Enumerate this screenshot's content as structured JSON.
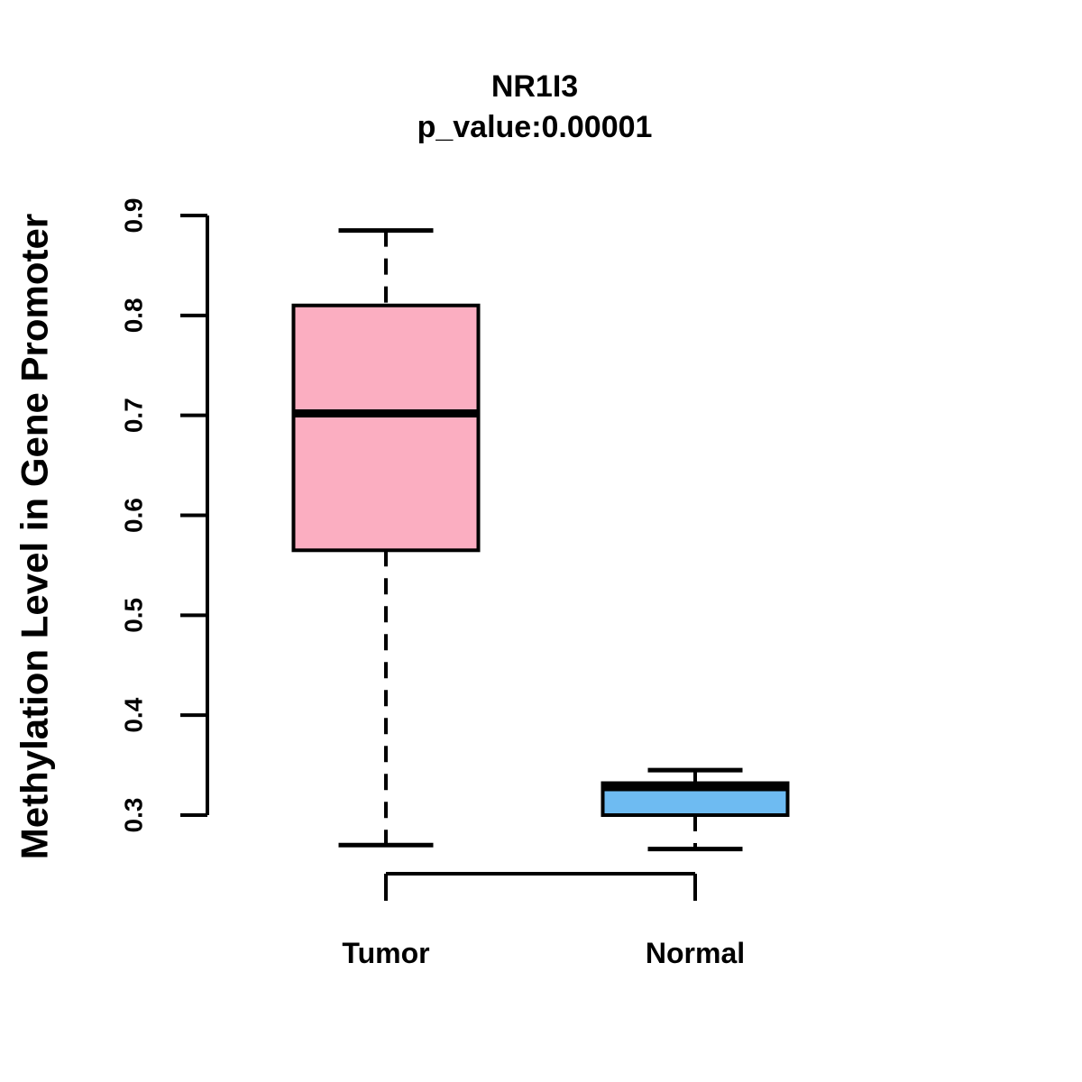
{
  "title": {
    "gene": "NR1I3",
    "p_value_line": "p_value:0.00001"
  },
  "colors": {
    "tumor_fill": "#FBAEC1",
    "normal_fill": "#6EBBF2",
    "line": "#000000",
    "background": "#FFFFFF"
  },
  "chart_data": {
    "type": "boxplot",
    "title": "NR1I3",
    "subtitle": "p_value:0.00001",
    "ylabel": "Methylation Level in Gene Promoter",
    "xlabel": "",
    "categories": [
      "Tumor",
      "Normal"
    ],
    "yticks": [
      "0.3",
      "0.4",
      "0.5",
      "0.6",
      "0.7",
      "0.8",
      "0.9"
    ],
    "ylim": [
      0.3,
      0.9
    ],
    "grid": false,
    "legend": "none",
    "series": [
      {
        "name": "Tumor",
        "color": "#FBAEC1",
        "lower_whisker": 0.27,
        "q1": 0.565,
        "median": 0.702,
        "q3": 0.81,
        "upper_whisker": 0.885
      },
      {
        "name": "Normal",
        "color": "#6EBBF2",
        "lower_whisker": 0.266,
        "q1": 0.3,
        "median": 0.328,
        "q3": 0.332,
        "upper_whisker": 0.345
      }
    ]
  }
}
